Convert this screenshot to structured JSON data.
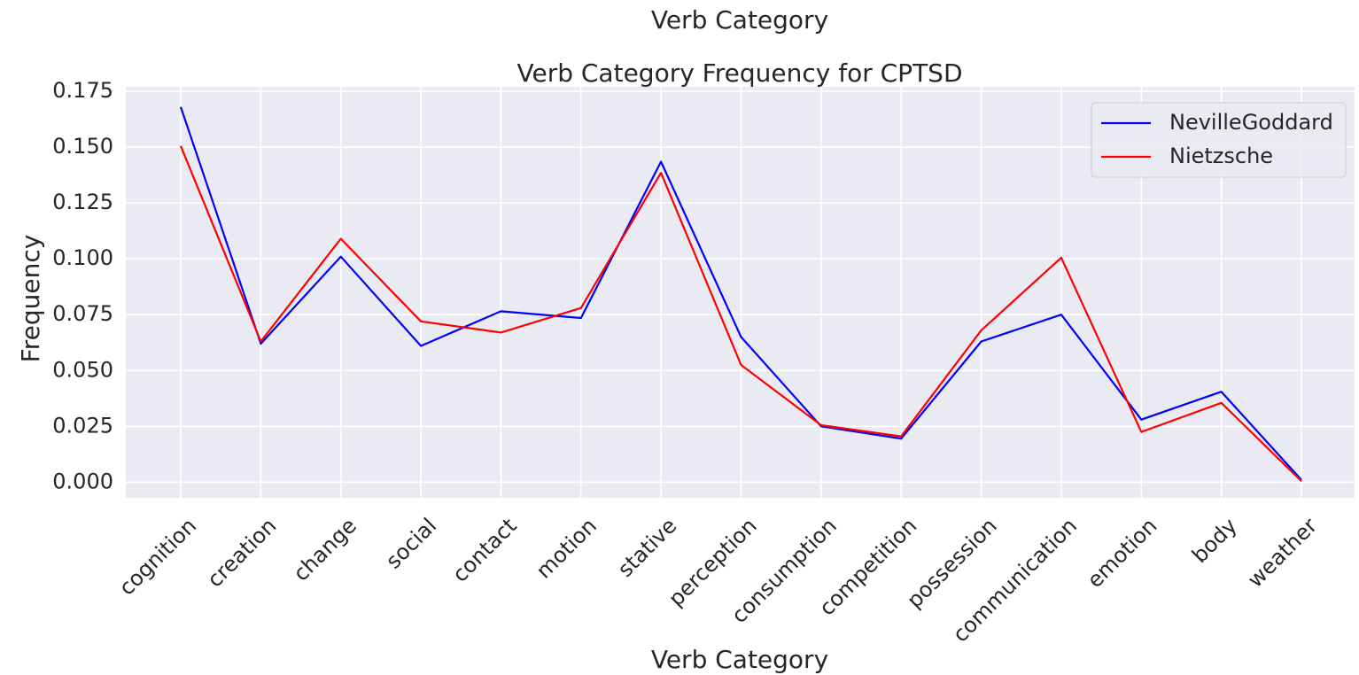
{
  "suptitle": "Verb Category",
  "chart_data": {
    "type": "line",
    "title": "Verb Category Frequency for CPTSD",
    "xlabel": "Verb Category",
    "ylabel": "Frequency",
    "categories": [
      "cognition",
      "creation",
      "change",
      "social",
      "contact",
      "motion",
      "stative",
      "perception",
      "consumption",
      "competition",
      "possession",
      "communication",
      "emotion",
      "body",
      "weather"
    ],
    "ylim": [
      -0.007,
      0.177
    ],
    "yticks": [
      "0.000",
      "0.025",
      "0.050",
      "0.075",
      "0.100",
      "0.125",
      "0.150",
      "0.175"
    ],
    "grid": true,
    "legend_position": "top-right",
    "series": [
      {
        "name": "NevilleGoddard",
        "color": "#0000ff",
        "values": [
          0.168,
          0.062,
          0.101,
          0.061,
          0.0765,
          0.0735,
          0.1435,
          0.065,
          0.025,
          0.0195,
          0.063,
          0.075,
          0.028,
          0.0405,
          0.001
        ]
      },
      {
        "name": "Nietzsche",
        "color": "#ff0000",
        "values": [
          0.1505,
          0.063,
          0.109,
          0.072,
          0.067,
          0.078,
          0.1385,
          0.0525,
          0.0255,
          0.0205,
          0.068,
          0.1005,
          0.0225,
          0.0355,
          0.0005
        ]
      }
    ]
  },
  "colors": {
    "plot_background": "#eaeaf2",
    "grid": "#ffffff",
    "text": "#262626"
  }
}
